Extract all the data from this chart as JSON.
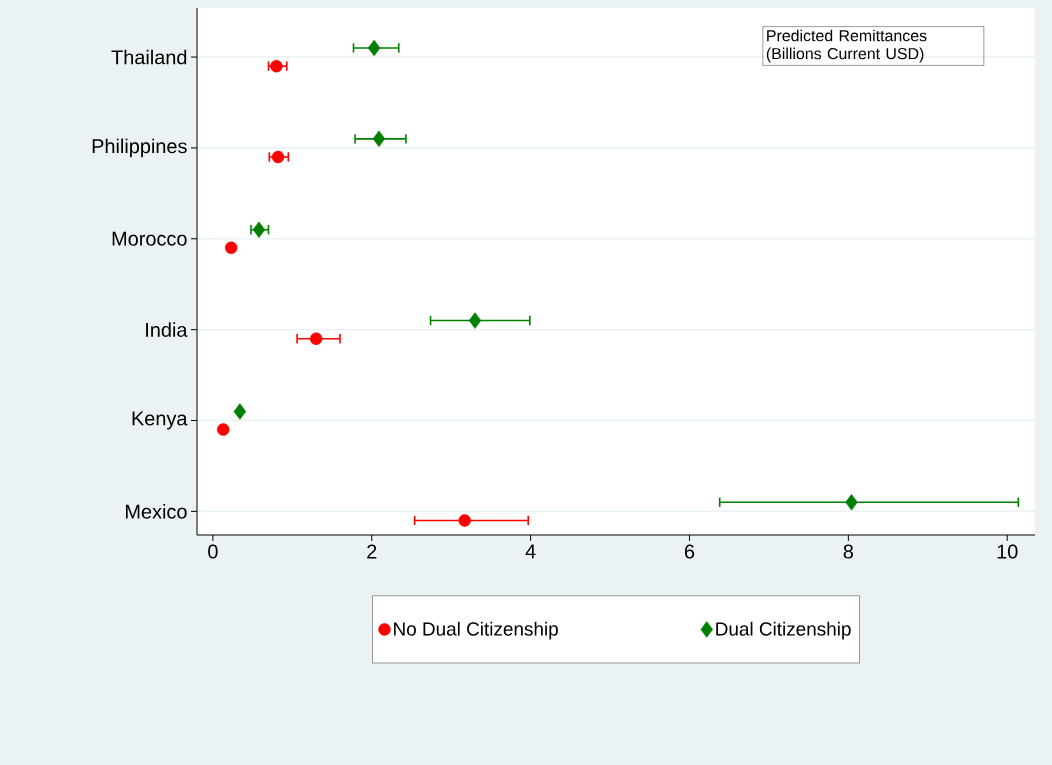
{
  "chart_data": {
    "type": "scatter",
    "orientation": "horizontal",
    "categories": [
      "Thailand",
      "Philippines",
      "Morocco",
      "India",
      "Kenya",
      "Mexico"
    ],
    "series": [
      {
        "name": "No Dual Citizenship",
        "color": "#ff0000",
        "marker": "circle",
        "values": [
          0.8,
          0.82,
          0.23,
          1.3,
          0.13,
          3.17
        ],
        "errors": [
          [
            0.69,
            0.94
          ],
          [
            0.7,
            0.96
          ],
          null,
          [
            1.05,
            1.61
          ],
          null,
          [
            2.53,
            3.98
          ]
        ]
      },
      {
        "name": "Dual Citizenship",
        "color": "#008000",
        "marker": "diamond",
        "values": [
          2.03,
          2.09,
          0.58,
          3.3,
          0.34,
          8.04
        ],
        "errors": [
          [
            1.76,
            2.35
          ],
          [
            1.78,
            2.44
          ],
          [
            0.47,
            0.71
          ],
          [
            2.73,
            4.0
          ],
          null,
          [
            6.37,
            10.15
          ]
        ]
      }
    ],
    "xlim": [
      -0.2,
      10.35
    ],
    "xticks": [
      0,
      2,
      4,
      6,
      8,
      10
    ],
    "grid": "y",
    "legend": "bottom",
    "annotations": [
      "Predicted Remittances (Billions Current USD)"
    ]
  }
}
